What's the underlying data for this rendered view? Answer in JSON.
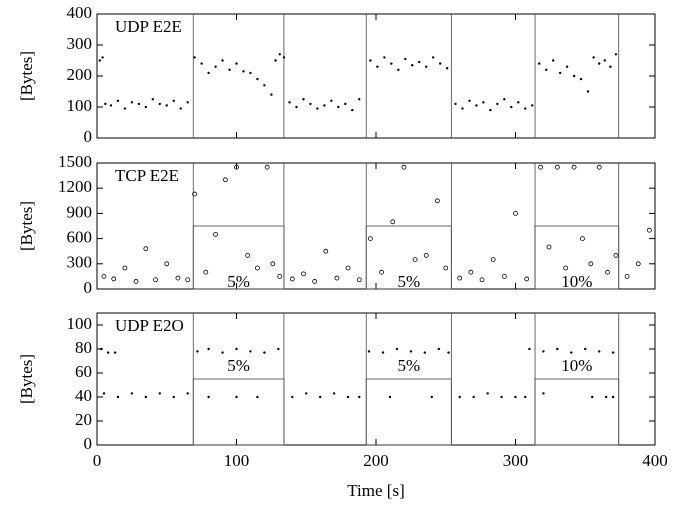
{
  "chart_data": [
    {
      "type": "scatter",
      "title": "UDP E2E",
      "ylabel": "[Bytes]",
      "marker": "dot",
      "color": "#000000",
      "xlim": [
        0,
        400
      ],
      "xticks": [
        0,
        100,
        200,
        300,
        400
      ],
      "ylim": [
        0,
        400
      ],
      "yticks": [
        0,
        100,
        200,
        300,
        400
      ],
      "x": [
        2,
        4,
        6,
        10,
        15,
        20,
        25,
        30,
        35,
        40,
        45,
        50,
        55,
        60,
        65,
        70,
        75,
        80,
        85,
        90,
        95,
        100,
        105,
        110,
        115,
        120,
        125,
        128,
        131,
        134,
        138,
        143,
        148,
        153,
        158,
        163,
        168,
        173,
        178,
        183,
        188,
        196,
        201,
        206,
        211,
        216,
        221,
        226,
        231,
        236,
        241,
        246,
        251,
        257,
        262,
        267,
        272,
        277,
        282,
        287,
        292,
        297,
        302,
        307,
        312,
        317,
        322,
        327,
        332,
        337,
        342,
        347,
        352,
        356,
        360,
        364,
        368,
        372
      ],
      "values": [
        250,
        260,
        110,
        105,
        120,
        95,
        115,
        110,
        100,
        125,
        110,
        105,
        120,
        95,
        115,
        260,
        240,
        210,
        230,
        250,
        220,
        240,
        215,
        210,
        190,
        170,
        140,
        250,
        270,
        260,
        115,
        100,
        125,
        110,
        95,
        105,
        120,
        100,
        110,
        90,
        125,
        250,
        230,
        260,
        240,
        220,
        255,
        235,
        245,
        230,
        260,
        240,
        225,
        110,
        95,
        120,
        105,
        115,
        90,
        110,
        125,
        100,
        115,
        95,
        105,
        240,
        220,
        250,
        210,
        230,
        200,
        190,
        150,
        260,
        240,
        250,
        230,
        270
      ],
      "regions": [
        {
          "x0": 69,
          "x1": 134
        },
        {
          "x0": 193,
          "x1": 254
        },
        {
          "x0": 314,
          "x1": 374
        }
      ]
    },
    {
      "type": "scatter",
      "title": "TCP E2E",
      "ylabel": "[Bytes]",
      "marker": "circle",
      "color": "#000000",
      "xlim": [
        0,
        400
      ],
      "xticks": [
        0,
        100,
        200,
        300,
        400
      ],
      "ylim": [
        0,
        1500
      ],
      "yticks": [
        0,
        300,
        600,
        900,
        1200,
        1500
      ],
      "x": [
        5,
        12,
        20,
        28,
        35,
        42,
        50,
        58,
        65,
        70,
        78,
        85,
        92,
        100,
        108,
        115,
        122,
        126,
        131,
        140,
        148,
        156,
        164,
        172,
        180,
        188,
        196,
        204,
        212,
        220,
        228,
        236,
        244,
        250,
        260,
        268,
        276,
        284,
        292,
        300,
        308,
        318,
        324,
        330,
        336,
        342,
        348,
        354,
        360,
        366,
        372,
        380,
        388,
        396
      ],
      "values": [
        150,
        120,
        250,
        90,
        480,
        110,
        300,
        130,
        110,
        1130,
        200,
        650,
        1300,
        1450,
        400,
        250,
        1450,
        300,
        150,
        120,
        180,
        90,
        450,
        130,
        250,
        110,
        600,
        200,
        800,
        1450,
        350,
        400,
        1050,
        250,
        130,
        200,
        110,
        350,
        150,
        900,
        120,
        1450,
        500,
        1450,
        250,
        1450,
        600,
        300,
        1450,
        200,
        400,
        150,
        300,
        700
      ],
      "label_position": "bottom",
      "regions": [
        {
          "x0": 69,
          "x1": 134,
          "height": 750,
          "label": "5%"
        },
        {
          "x0": 193,
          "x1": 254,
          "height": 750,
          "label": "5%"
        },
        {
          "x0": 314,
          "x1": 374,
          "height": 750,
          "label": "10%"
        }
      ]
    },
    {
      "type": "scatter",
      "title": "UDP E2O",
      "ylabel": "[Bytes]",
      "xlabel": "Time [s]",
      "marker": "dot",
      "color": "#000000",
      "xlim": [
        0,
        400
      ],
      "xticks": [
        0,
        100,
        200,
        300,
        400
      ],
      "ylim": [
        0,
        110
      ],
      "yticks": [
        0,
        20,
        40,
        60,
        80,
        100
      ],
      "x": [
        3,
        8,
        13,
        5,
        15,
        25,
        35,
        45,
        55,
        65,
        72,
        80,
        90,
        100,
        110,
        120,
        130,
        80,
        100,
        115,
        140,
        150,
        160,
        170,
        180,
        188,
        195,
        205,
        215,
        225,
        235,
        245,
        252,
        210,
        240,
        260,
        270,
        280,
        290,
        300,
        307,
        310,
        320,
        330,
        340,
        350,
        360,
        370,
        320,
        355,
        365,
        370
      ],
      "values": [
        80,
        77,
        77,
        43,
        40,
        43,
        40,
        43,
        40,
        43,
        78,
        80,
        77,
        80,
        78,
        77,
        80,
        40,
        40,
        40,
        40,
        43,
        40,
        43,
        40,
        40,
        78,
        77,
        80,
        78,
        77,
        80,
        77,
        40,
        40,
        40,
        40,
        43,
        40,
        40,
        40,
        80,
        78,
        80,
        77,
        80,
        78,
        77,
        43,
        40,
        40,
        40
      ],
      "label_position": "top",
      "regions": [
        {
          "x0": 69,
          "x1": 134,
          "height": 55,
          "label": "5%"
        },
        {
          "x0": 193,
          "x1": 254,
          "height": 55,
          "label": "5%"
        },
        {
          "x0": 314,
          "x1": 374,
          "height": 55,
          "label": "10%"
        }
      ]
    }
  ]
}
